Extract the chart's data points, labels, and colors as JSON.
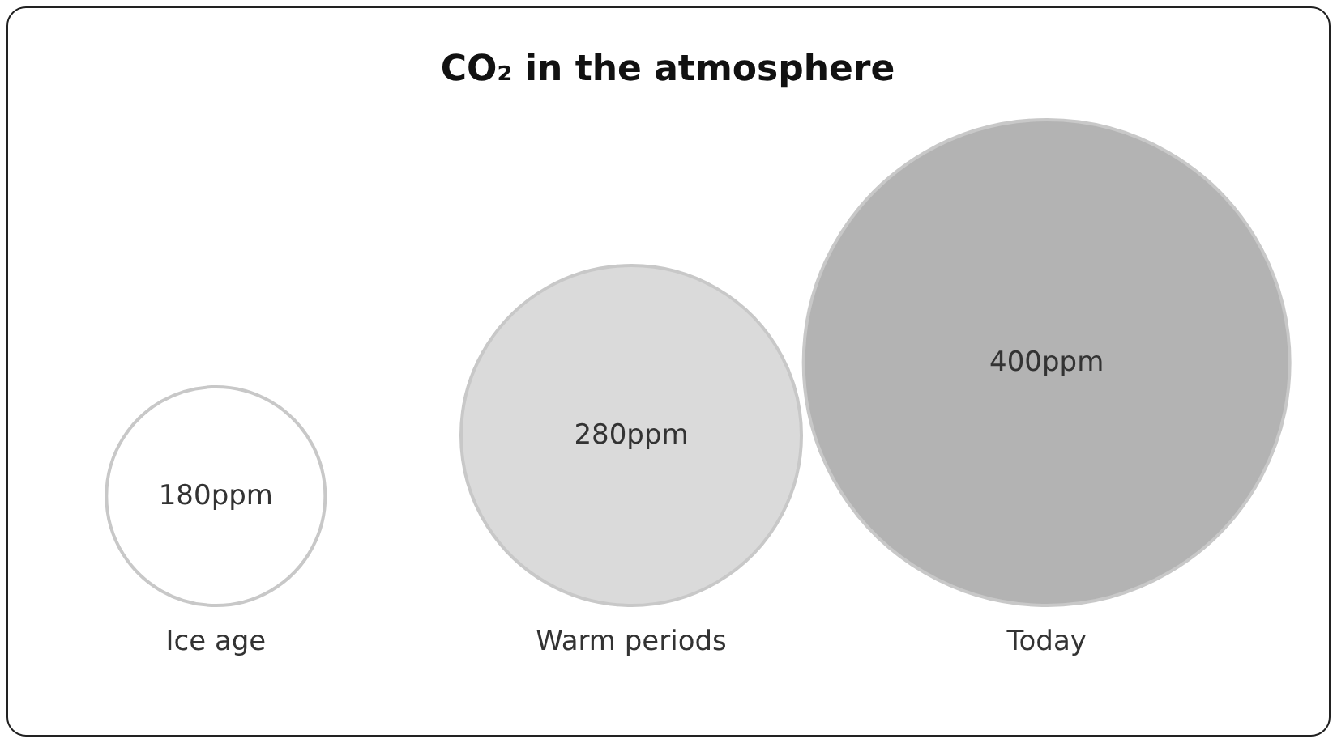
{
  "chart_data": {
    "type": "other",
    "title": "CO₂ in the atmosphere",
    "categories": [
      "Ice age",
      "Warm periods",
      "Today"
    ],
    "values": [
      180,
      280,
      400
    ],
    "value_labels": [
      "180ppm",
      "280ppm",
      "400ppm"
    ],
    "colors": [
      "#ffffff",
      "#dadada",
      "#b3b3b3"
    ]
  }
}
